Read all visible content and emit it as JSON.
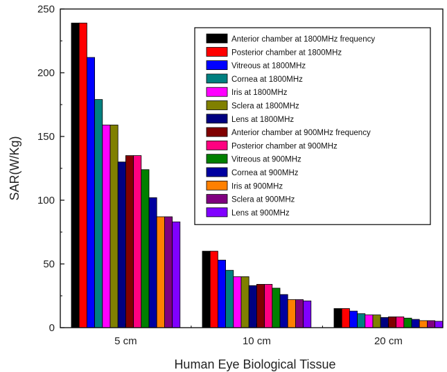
{
  "chart_data": {
    "type": "bar",
    "title": "",
    "xlabel": "Human Eye Biological Tissue",
    "ylabel": "SAR(W/Kg)",
    "ylim": [
      0,
      250
    ],
    "yticks": [
      0,
      50,
      100,
      150,
      200,
      250
    ],
    "categories": [
      "5 cm",
      "10 cm",
      "20 cm"
    ],
    "legend_position": "top-right",
    "grid": false,
    "series": [
      {
        "name": "Anterior chamber at 1800MHz frequency",
        "color": "#000000",
        "values": [
          239,
          60,
          15
        ]
      },
      {
        "name": "Posterior chamber at 1800MHz",
        "color": "#ff0000",
        "values": [
          239,
          60,
          15
        ]
      },
      {
        "name": "Vitreous at 1800MHz",
        "color": "#0000ff",
        "values": [
          212,
          53,
          13
        ]
      },
      {
        "name": "Cornea  at 1800MHz",
        "color": "#008080",
        "values": [
          179,
          45,
          11
        ]
      },
      {
        "name": "Iris at 1800MHz",
        "color": "#ff00ff",
        "values": [
          159,
          40,
          10
        ]
      },
      {
        "name": "Sclera at 1800MHz",
        "color": "#808000",
        "values": [
          159,
          40,
          10
        ]
      },
      {
        "name": "Lens at 1800MHz",
        "color": "#000080",
        "values": [
          130,
          33,
          8
        ]
      },
      {
        "name": "Anterior chamber at 900MHz frequency",
        "color": "#800000",
        "values": [
          135,
          34,
          8.5
        ]
      },
      {
        "name": "Posterior chamber at 900MHz",
        "color": "#ff0080",
        "values": [
          135,
          34,
          8.5
        ]
      },
      {
        "name": "Vitreous at 900MHz",
        "color": "#008000",
        "values": [
          124,
          31,
          7.5
        ]
      },
      {
        "name": "Cornea  at 900MHz",
        "color": "#0000a0",
        "values": [
          102,
          26,
          6.5
        ]
      },
      {
        "name": "Iris at 900MHz",
        "color": "#ff8000",
        "values": [
          87,
          22,
          5.5
        ]
      },
      {
        "name": "Sclera at 900MHz",
        "color": "#800080",
        "values": [
          87,
          22,
          5.5
        ]
      },
      {
        "name": "Lens at 900MHz",
        "color": "#8000ff",
        "values": [
          83,
          21,
          5
        ]
      }
    ]
  }
}
